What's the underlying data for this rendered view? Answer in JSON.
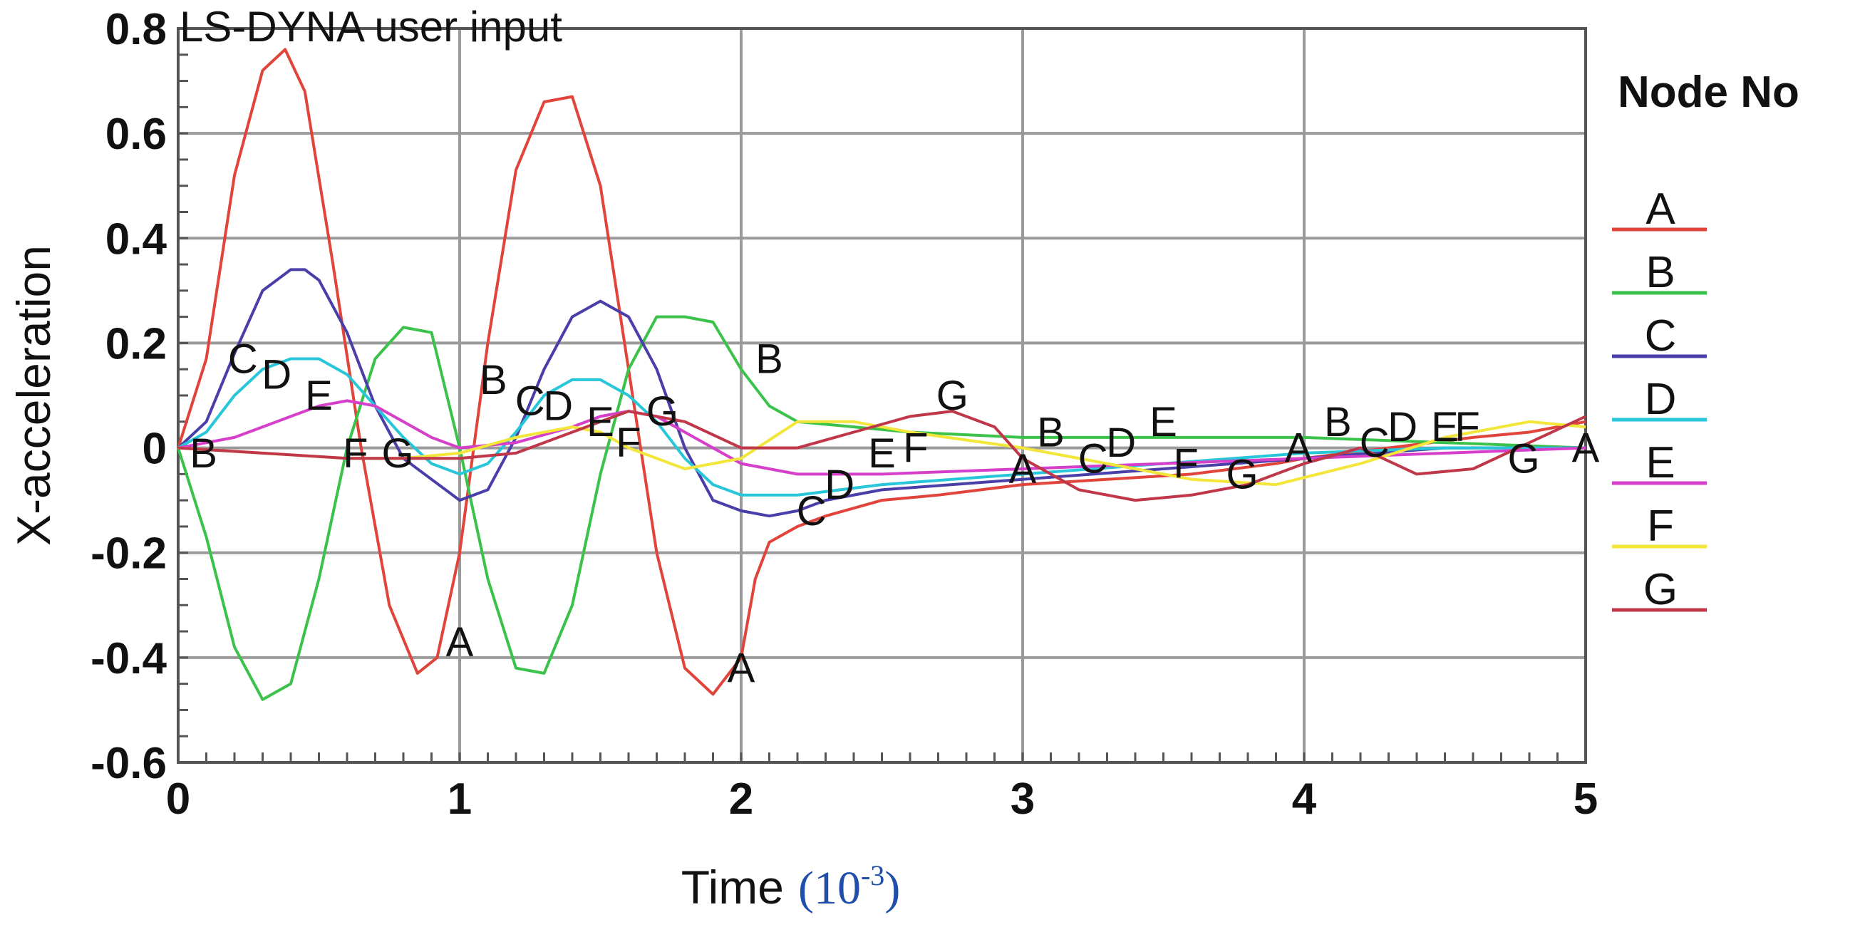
{
  "chart_data": {
    "type": "line",
    "title": "LS-DYNA user input",
    "xlabel": "Time",
    "xlabel_unit_base": "(10",
    "xlabel_unit_exp": "-3",
    "xlabel_unit_close": ")",
    "ylabel": "X-acceleration",
    "xlim": [
      0,
      5
    ],
    "ylim": [
      -0.6,
      0.8
    ],
    "xticks": [
      "0",
      "1",
      "2",
      "3",
      "4",
      "5"
    ],
    "yticks": [
      "-0.6",
      "-0.4",
      "-0.2",
      "0",
      "0.2",
      "0.4",
      "0.6",
      "0.8"
    ],
    "grid": true,
    "legend_title": "Node No",
    "legend_position": "right",
    "series": [
      {
        "name": "A",
        "color": "#e0443a",
        "x": [
          0,
          0.1,
          0.2,
          0.3,
          0.38,
          0.45,
          0.55,
          0.65,
          0.75,
          0.85,
          0.92,
          1.0,
          1.1,
          1.2,
          1.3,
          1.4,
          1.5,
          1.6,
          1.7,
          1.8,
          1.9,
          2.0,
          2.05,
          2.1,
          2.2,
          2.3,
          2.5,
          2.7,
          3.0,
          3.3,
          3.6,
          3.9,
          4.0,
          4.3,
          4.6,
          4.8,
          5.0
        ],
        "y": [
          0,
          0.17,
          0.52,
          0.72,
          0.76,
          0.68,
          0.35,
          0.0,
          -0.3,
          -0.43,
          -0.4,
          -0.2,
          0.2,
          0.53,
          0.66,
          0.67,
          0.5,
          0.15,
          -0.2,
          -0.42,
          -0.47,
          -0.4,
          -0.25,
          -0.18,
          -0.15,
          -0.13,
          -0.1,
          -0.09,
          -0.07,
          -0.06,
          -0.05,
          -0.03,
          -0.02,
          0.0,
          0.02,
          0.03,
          0.05
        ],
        "labels": [
          {
            "x": 1.0,
            "y": -0.37
          },
          {
            "x": 2.0,
            "y": -0.42
          },
          {
            "x": 3.0,
            "y": -0.04
          },
          {
            "x": 3.98,
            "y": 0.0
          },
          {
            "x": 5.0,
            "y": 0.0
          }
        ]
      },
      {
        "name": "B",
        "color": "#3bc24a",
        "x": [
          0,
          0.1,
          0.2,
          0.3,
          0.4,
          0.5,
          0.6,
          0.7,
          0.8,
          0.9,
          1.0,
          1.1,
          1.2,
          1.3,
          1.4,
          1.5,
          1.6,
          1.7,
          1.8,
          1.9,
          2.0,
          2.1,
          2.2,
          2.4,
          2.6,
          3.0,
          3.5,
          4.0,
          4.5,
          5.0
        ],
        "y": [
          0,
          -0.17,
          -0.38,
          -0.48,
          -0.45,
          -0.25,
          0.0,
          0.17,
          0.23,
          0.22,
          0.0,
          -0.25,
          -0.42,
          -0.43,
          -0.3,
          -0.05,
          0.15,
          0.25,
          0.25,
          0.24,
          0.15,
          0.08,
          0.05,
          0.04,
          0.03,
          0.02,
          0.02,
          0.02,
          0.01,
          0.0
        ],
        "labels": [
          {
            "x": 0.09,
            "y": -0.01
          },
          {
            "x": 1.12,
            "y": 0.13
          },
          {
            "x": 2.1,
            "y": 0.17
          },
          {
            "x": 3.1,
            "y": 0.03
          },
          {
            "x": 4.12,
            "y": 0.05
          }
        ]
      },
      {
        "name": "C",
        "color": "#4a3fa8",
        "x": [
          0,
          0.1,
          0.2,
          0.3,
          0.4,
          0.45,
          0.5,
          0.6,
          0.7,
          0.8,
          0.9,
          1.0,
          1.1,
          1.2,
          1.3,
          1.4,
          1.5,
          1.6,
          1.7,
          1.8,
          1.9,
          2.0,
          2.1,
          2.2,
          2.3,
          2.5,
          3.0,
          3.5,
          4.0,
          4.5,
          5.0
        ],
        "y": [
          0,
          0.05,
          0.18,
          0.3,
          0.34,
          0.34,
          0.32,
          0.22,
          0.08,
          -0.02,
          -0.06,
          -0.1,
          -0.08,
          0.02,
          0.15,
          0.25,
          0.28,
          0.25,
          0.15,
          0.0,
          -0.1,
          -0.12,
          -0.13,
          -0.12,
          -0.1,
          -0.08,
          -0.06,
          -0.04,
          -0.02,
          0.0,
          0.0
        ],
        "labels": [
          {
            "x": 0.23,
            "y": 0.17
          },
          {
            "x": 1.25,
            "y": 0.09
          },
          {
            "x": 2.25,
            "y": -0.12
          },
          {
            "x": 3.25,
            "y": -0.02
          },
          {
            "x": 4.25,
            "y": 0.01
          }
        ]
      },
      {
        "name": "D",
        "color": "#27c6d8",
        "x": [
          0,
          0.1,
          0.2,
          0.3,
          0.4,
          0.5,
          0.6,
          0.7,
          0.8,
          0.9,
          1.0,
          1.1,
          1.2,
          1.3,
          1.4,
          1.5,
          1.6,
          1.7,
          1.8,
          1.9,
          2.0,
          2.2,
          2.5,
          3.0,
          3.5,
          4.0,
          4.5,
          5.0
        ],
        "y": [
          0,
          0.03,
          0.1,
          0.15,
          0.17,
          0.17,
          0.14,
          0.08,
          0.02,
          -0.03,
          -0.05,
          -0.03,
          0.03,
          0.1,
          0.13,
          0.13,
          0.1,
          0.05,
          -0.02,
          -0.07,
          -0.09,
          -0.09,
          -0.07,
          -0.05,
          -0.03,
          -0.01,
          0.0,
          0.0
        ],
        "labels": [
          {
            "x": 0.35,
            "y": 0.14
          },
          {
            "x": 1.35,
            "y": 0.08
          },
          {
            "x": 2.35,
            "y": -0.07
          },
          {
            "x": 3.35,
            "y": 0.01
          },
          {
            "x": 4.35,
            "y": 0.04
          }
        ]
      },
      {
        "name": "E",
        "color": "#d63fc9",
        "x": [
          0,
          0.2,
          0.4,
          0.5,
          0.6,
          0.7,
          0.8,
          0.9,
          1.0,
          1.2,
          1.4,
          1.5,
          1.6,
          1.7,
          1.8,
          1.9,
          2.0,
          2.2,
          2.5,
          3.0,
          3.5,
          4.0,
          4.5,
          5.0
        ],
        "y": [
          0,
          0.02,
          0.06,
          0.08,
          0.09,
          0.08,
          0.05,
          0.02,
          0.0,
          0.01,
          0.04,
          0.06,
          0.07,
          0.06,
          0.03,
          0.0,
          -0.03,
          -0.05,
          -0.05,
          -0.04,
          -0.03,
          -0.02,
          -0.01,
          0.0
        ],
        "labels": [
          {
            "x": 0.5,
            "y": 0.1
          },
          {
            "x": 1.5,
            "y": 0.05
          },
          {
            "x": 2.5,
            "y": -0.01
          },
          {
            "x": 3.5,
            "y": 0.05
          },
          {
            "x": 4.5,
            "y": 0.04
          }
        ]
      },
      {
        "name": "F",
        "color": "#f2e63a",
        "x": [
          0,
          0.3,
          0.6,
          0.8,
          1.0,
          1.2,
          1.4,
          1.5,
          1.6,
          1.8,
          2.0,
          2.2,
          2.4,
          2.6,
          3.0,
          3.3,
          3.6,
          3.9,
          4.2,
          4.5,
          4.8,
          5.0
        ],
        "y": [
          0,
          -0.01,
          -0.02,
          -0.02,
          -0.01,
          0.02,
          0.04,
          0.03,
          0.0,
          -0.04,
          -0.02,
          0.05,
          0.05,
          0.03,
          0.0,
          -0.03,
          -0.06,
          -0.07,
          -0.03,
          0.02,
          0.05,
          0.04
        ],
        "labels": [
          {
            "x": 0.63,
            "y": -0.01
          },
          {
            "x": 1.6,
            "y": 0.01
          },
          {
            "x": 2.62,
            "y": 0.0
          },
          {
            "x": 3.58,
            "y": -0.03
          },
          {
            "x": 4.58,
            "y": 0.04
          }
        ]
      },
      {
        "name": "G",
        "color": "#c0374a",
        "x": [
          0,
          0.3,
          0.6,
          0.8,
          1.0,
          1.2,
          1.4,
          1.6,
          1.8,
          2.0,
          2.2,
          2.4,
          2.6,
          2.75,
          2.9,
          3.0,
          3.2,
          3.4,
          3.6,
          3.8,
          4.0,
          4.2,
          4.4,
          4.6,
          4.8,
          5.0
        ],
        "y": [
          0,
          -0.01,
          -0.02,
          -0.02,
          -0.02,
          -0.01,
          0.03,
          0.07,
          0.05,
          0.0,
          0.0,
          0.03,
          0.06,
          0.07,
          0.04,
          -0.02,
          -0.08,
          -0.1,
          -0.09,
          -0.07,
          -0.03,
          0.0,
          -0.05,
          -0.04,
          0.01,
          0.06
        ],
        "labels": [
          {
            "x": 0.78,
            "y": -0.01
          },
          {
            "x": 1.72,
            "y": 0.07
          },
          {
            "x": 2.75,
            "y": 0.1
          },
          {
            "x": 3.78,
            "y": -0.05
          },
          {
            "x": 4.78,
            "y": -0.02
          }
        ]
      }
    ]
  }
}
